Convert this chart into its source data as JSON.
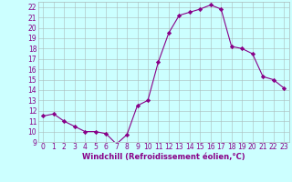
{
  "x": [
    0,
    1,
    2,
    3,
    4,
    5,
    6,
    7,
    8,
    9,
    10,
    11,
    12,
    13,
    14,
    15,
    16,
    17,
    18,
    19,
    20,
    21,
    22,
    23
  ],
  "y": [
    11.5,
    11.7,
    11.0,
    10.5,
    10.0,
    10.0,
    9.8,
    8.8,
    9.7,
    12.5,
    13.0,
    16.7,
    19.5,
    21.2,
    21.5,
    21.8,
    22.2,
    21.8,
    18.2,
    18.0,
    17.5,
    15.3,
    15.0,
    14.2
  ],
  "line_color": "#880088",
  "marker": "D",
  "marker_size": 2.2,
  "bg_color": "#ccffff",
  "grid_color": "#aabbbb",
  "xlabel": "Windchill (Refroidissement éolien,°C)",
  "xlabel_color": "#880088",
  "tick_color": "#880088",
  "ylim": [
    9,
    22.5
  ],
  "xlim": [
    -0.5,
    23.5
  ],
  "yticks": [
    9,
    10,
    11,
    12,
    13,
    14,
    15,
    16,
    17,
    18,
    19,
    20,
    21,
    22
  ],
  "xticks": [
    0,
    1,
    2,
    3,
    4,
    5,
    6,
    7,
    8,
    9,
    10,
    11,
    12,
    13,
    14,
    15,
    16,
    17,
    18,
    19,
    20,
    21,
    22,
    23
  ],
  "tick_fontsize": 5.5,
  "xlabel_fontsize": 6.0
}
